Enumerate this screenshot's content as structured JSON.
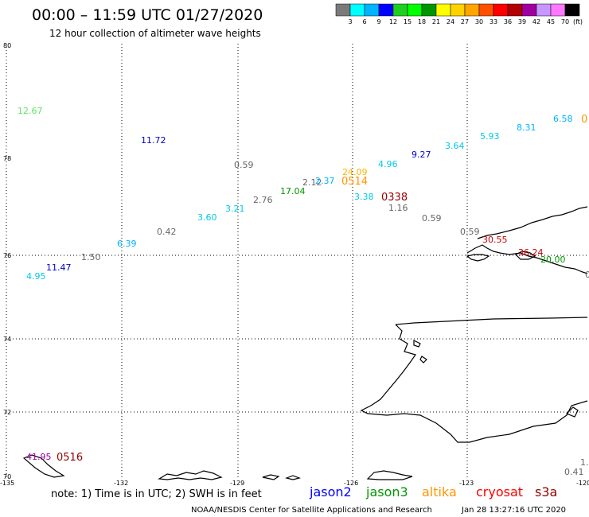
{
  "header": {
    "title": "00:00 – 11:59 UTC 01/27/2020",
    "subtitle": "12 hour collection of altimeter wave heights"
  },
  "color_scale": {
    "unit": "(ft)",
    "labels": [
      "3",
      "6",
      "9",
      "12",
      "15",
      "18",
      "21",
      "24",
      "27",
      "30",
      "33",
      "36",
      "39",
      "42",
      "45",
      "70"
    ],
    "colors": [
      "#7a7a7a",
      "#00ffff",
      "#00b4ff",
      "#0000ff",
      "#1fcf1f",
      "#00ff00",
      "#009600",
      "#ffff00",
      "#ffd200",
      "#ffa500",
      "#ff5000",
      "#ff0000",
      "#b40000",
      "#a000a0",
      "#c896ff",
      "#ff78ff",
      "#000000"
    ]
  },
  "axes": {
    "lat_labels": [
      "80",
      "78",
      "76",
      "74",
      "72",
      "70"
    ],
    "lon_labels": [
      "-135",
      "-132",
      "-129",
      "-126",
      "-123",
      "-120"
    ]
  },
  "observations": [
    {
      "value": "12.67",
      "color": "#5ce65c"
    },
    {
      "value": "11.72",
      "color": "#0000cc"
    },
    {
      "value": "0.59",
      "color": "#666666"
    },
    {
      "value": "2.76",
      "color": "#666666"
    },
    {
      "value": "17.04",
      "color": "#009600"
    },
    {
      "value": "2.12",
      "color": "#666666"
    },
    {
      "value": "2.37",
      "color": "#00b4ff"
    },
    {
      "value": "24.09",
      "color": "#ffb400"
    },
    {
      "value": "4.96",
      "color": "#00c8e6"
    },
    {
      "value": "9.27",
      "color": "#0000cc"
    },
    {
      "value": "3.64",
      "color": "#00c8e6"
    },
    {
      "value": "5.93",
      "color": "#00c8e6"
    },
    {
      "value": "8.31",
      "color": "#00b4ff"
    },
    {
      "value": "6.58",
      "color": "#00b4ff"
    },
    {
      "value": "3.38",
      "color": "#00c8e6"
    },
    {
      "value": "1.16",
      "color": "#666666"
    },
    {
      "value": "0.59",
      "color": "#666666"
    },
    {
      "value": "0.59",
      "color": "#666666"
    },
    {
      "value": "30.55",
      "color": "#c80000"
    },
    {
      "value": "36.24",
      "color": "#c80000"
    },
    {
      "value": "20.00",
      "color": "#009600"
    },
    {
      "value": "3.21",
      "color": "#00c8e6"
    },
    {
      "value": "3.60",
      "color": "#00c8e6"
    },
    {
      "value": "0.42",
      "color": "#666666"
    },
    {
      "value": "6.39",
      "color": "#00b4ff"
    },
    {
      "value": "1.50",
      "color": "#666666"
    },
    {
      "value": "11.47",
      "color": "#0000cc"
    },
    {
      "value": "4.95",
      "color": "#00c8e6"
    },
    {
      "value": "41.95",
      "color": "#a000a0"
    },
    {
      "value": "0.41",
      "color": "#666666"
    },
    {
      "value": "1.",
      "color": "#666666"
    },
    {
      "value": "0",
      "color": "#666666"
    }
  ],
  "time_labels": [
    {
      "value": "0514",
      "color": "#ff9600"
    },
    {
      "value": "0338",
      "color": "#960000"
    },
    {
      "value": "0516",
      "color": "#960000"
    },
    {
      "value": "0",
      "color": "#ff9600"
    }
  ],
  "satellites": [
    {
      "name": "jason2",
      "color": "#0000ff"
    },
    {
      "name": "jason3",
      "color": "#009600"
    },
    {
      "name": "altika",
      "color": "#ff9600"
    },
    {
      "name": "cryosat",
      "color": "#ff0000"
    },
    {
      "name": "s3a",
      "color": "#960000"
    }
  ],
  "footer": {
    "note": "note: 1) Time is in UTC; 2) SWH is in feet",
    "credit": "NOAA/NESDIS Center for Satellite Applications and Research",
    "timestamp": "Jan 28 13:27:16 UTC 2020"
  }
}
